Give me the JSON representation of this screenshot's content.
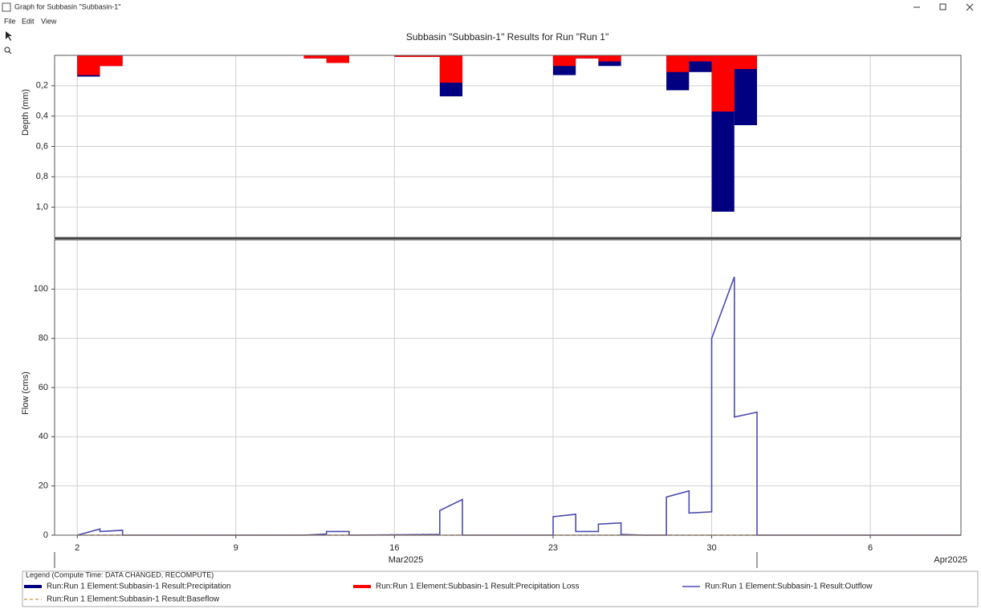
{
  "window": {
    "title": "Graph for Subbasin \"Subbasin-1\"",
    "menu": [
      "File",
      "Edit",
      "View"
    ]
  },
  "legend": {
    "title": "Legend (Compute Time: DATA CHANGED, RECOMPUTE)"
  },
  "chart_data": [
    {
      "type": "bar",
      "title": "Subbasin \"Subbasin-1\" Results for Run \"Run 1\"",
      "y_label": "Depth (mm)",
      "x": [
        "2025-03-02",
        "2025-03-03",
        "2025-03-12",
        "2025-03-13",
        "2025-03-16",
        "2025-03-17",
        "2025-03-18",
        "2025-03-23",
        "2025-03-24",
        "2025-03-25",
        "2025-03-28",
        "2025-03-29",
        "2025-03-30",
        "2025-03-31"
      ],
      "series": [
        {
          "name": "Run:Run 1 Element:Subbasin-1 Result:Precipitation",
          "color": "#000080",
          "values": [
            0.14,
            0.07,
            0.02,
            0.05,
            0.01,
            0.01,
            0.27,
            0.13,
            0.02,
            0.07,
            0.23,
            0.11,
            1.03,
            0.46
          ]
        },
        {
          "name": "Run:Run 1 Element:Subbasin-1 Result:Precipitation Loss",
          "color": "#ff0000",
          "values": [
            0.13,
            0.07,
            0.02,
            0.05,
            0.01,
            0.01,
            0.18,
            0.07,
            0.02,
            0.04,
            0.11,
            0.04,
            0.37,
            0.09
          ]
        }
      ],
      "xlim": [
        "2025-03-01",
        "2025-04-10"
      ],
      "ylim": [
        0,
        1.2
      ],
      "inverted": true,
      "grid": true,
      "yticks": [
        {
          "value": 0.2,
          "label": "0,2"
        },
        {
          "value": 0.4,
          "label": "0,4"
        },
        {
          "value": 0.6,
          "label": "0,6"
        },
        {
          "value": 0.8,
          "label": "0,8"
        },
        {
          "value": 1.0,
          "label": "1,0"
        }
      ]
    },
    {
      "type": "line",
      "y_label": "Flow (cms)",
      "series": [
        {
          "name": "Run:Run 1 Element:Subbasin-1 Result:Outflow",
          "color": "#4b4bb0",
          "line_style": "solid",
          "x": [
            "2025-03-02",
            "2025-03-03",
            "2025-03-03",
            "2025-03-04",
            "2025-03-04",
            "2025-03-12",
            "2025-03-13",
            "2025-03-13",
            "2025-03-14",
            "2025-03-14",
            "2025-03-18",
            "2025-03-18",
            "2025-03-19",
            "2025-03-19",
            "2025-03-23",
            "2025-03-23",
            "2025-03-24",
            "2025-03-24",
            "2025-03-25",
            "2025-03-25",
            "2025-03-26",
            "2025-03-26",
            "2025-03-27",
            "2025-03-28",
            "2025-03-28",
            "2025-03-29",
            "2025-03-29",
            "2025-03-30",
            "2025-03-30",
            "2025-03-31",
            "2025-03-31",
            "2025-04-01",
            "2025-04-01",
            "2025-04-10"
          ],
          "values": [
            0,
            2.5,
            1.5,
            2,
            0,
            0,
            0.5,
            1.5,
            1.5,
            0,
            0.3,
            10,
            14.5,
            0,
            0,
            7.5,
            8.5,
            1.5,
            1.5,
            4.5,
            5,
            0.3,
            0,
            0,
            15.5,
            18,
            9,
            9.5,
            80,
            105,
            48,
            50,
            0,
            0
          ]
        },
        {
          "name": "Run:Run 1 Element:Subbasin-1 Result:Baseflow",
          "color": "#e0a060",
          "line_style": "dashed",
          "x": [
            "2025-03-02",
            "2025-04-10"
          ],
          "values": [
            0,
            0
          ]
        }
      ],
      "xlim": [
        "2025-03-01",
        "2025-04-10"
      ],
      "ylim": [
        0,
        120
      ],
      "grid": true,
      "yticks": [
        0,
        20,
        40,
        60,
        80,
        100
      ],
      "xticks": [
        {
          "value": "2025-03-02",
          "label": "2"
        },
        {
          "value": "2025-03-09",
          "label": "9"
        },
        {
          "value": "2025-03-16",
          "label": "16"
        },
        {
          "value": "2025-03-23",
          "label": "23"
        },
        {
          "value": "2025-03-30",
          "label": "30"
        },
        {
          "value": "2025-04-06",
          "label": "6"
        }
      ],
      "month_ticks": [
        {
          "value": "2025-03-01",
          "label": "Mar2025"
        },
        {
          "value": "2025-04-01",
          "label": "Apr2025"
        }
      ]
    }
  ]
}
